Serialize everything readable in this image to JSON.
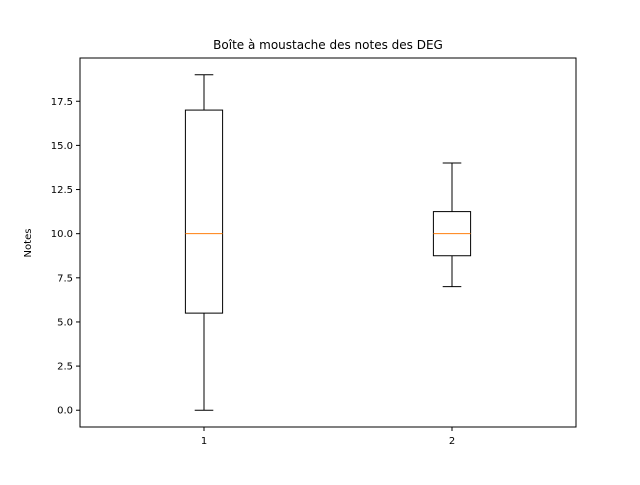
{
  "chart_data": {
    "type": "boxplot",
    "title": "Boîte à moustache des notes des DEG",
    "xlabel": "",
    "ylabel": "Notes",
    "categories": [
      "1",
      "2"
    ],
    "boxes": [
      {
        "category": "1",
        "whisker_low": 0.0,
        "q1": 5.5,
        "median": 10.0,
        "q3": 17.0,
        "whisker_high": 19.0
      },
      {
        "category": "2",
        "whisker_low": 7.0,
        "q1": 8.75,
        "median": 10.0,
        "q3": 11.25,
        "whisker_high": 14.0
      }
    ],
    "y_ticks": [
      "0.0",
      "2.5",
      "5.0",
      "7.5",
      "10.0",
      "12.5",
      "15.0",
      "17.5"
    ],
    "ylim": [
      -0.95,
      19.95
    ],
    "xlim": [
      0.5,
      2.5
    ],
    "grid": false,
    "colors": {
      "box": "#000000",
      "median": "#ff7f0e",
      "whisker": "#000000"
    }
  }
}
